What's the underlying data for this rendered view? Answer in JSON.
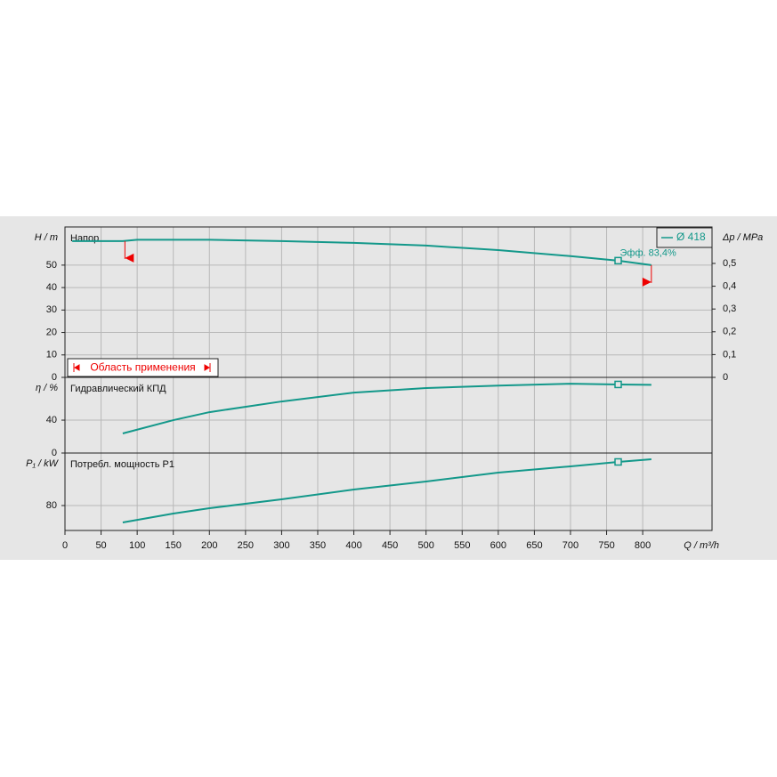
{
  "chart_data": [
    {
      "type": "line",
      "subtitle": "Напор",
      "ylabel": "H / m",
      "y2label": "Δp / MPa",
      "x": [
        10,
        80,
        100,
        200,
        300,
        400,
        500,
        600,
        700,
        766,
        812
      ],
      "series": [
        {
          "name": "Ø 418",
          "color": "#13988a",
          "values": [
            60.7,
            60.7,
            61.3,
            61.3,
            60.7,
            59.9,
            58.7,
            56.7,
            54,
            52,
            50
          ]
        }
      ],
      "ylim": [
        0,
        67
      ],
      "yticks": [
        0,
        10,
        20,
        30,
        40,
        50
      ],
      "y2lim": [
        0,
        0.66
      ],
      "y2ticks": [
        0,
        {
          "value": 0.1,
          "label": "0,1"
        },
        {
          "value": 0.2,
          "label": "0,2"
        },
        {
          "value": 0.3,
          "label": "0,3"
        },
        {
          "value": 0.4,
          "label": "0,4"
        },
        {
          "value": 0.5,
          "label": "0,5"
        }
      ],
      "operating_point": {
        "x": 766,
        "y": 52,
        "label": "Эфф.  83,4%"
      },
      "application_range": {
        "label": "Область применения",
        "x": [
          83,
          812
        ]
      },
      "grid": true
    },
    {
      "type": "line",
      "subtitle": "Гидравлический КПД",
      "ylabel": "η / %",
      "x": [
        80,
        150,
        200,
        300,
        400,
        500,
        600,
        700,
        766,
        812
      ],
      "series": [
        {
          "name": "Ø 418",
          "color": "#13988a",
          "values": [
            23.8,
            40,
            49.7,
            62.7,
            73.5,
            79,
            82,
            84.3,
            83.4,
            83
          ]
        }
      ],
      "ylim": [
        0,
        92
      ],
      "yticks": [
        0,
        40
      ],
      "operating_point": {
        "x": 766,
        "y": 83.4
      },
      "grid": true
    },
    {
      "type": "line",
      "subtitle": "Потребл. мощность P1",
      "ylabel": "P₁ / kW",
      "xlabel": "Q / m³/h",
      "x": [
        80,
        150,
        200,
        300,
        400,
        500,
        600,
        700,
        766,
        812
      ],
      "series": [
        {
          "name": "Ø 418",
          "color": "#13988a",
          "values": [
            61,
            71,
            77,
            87,
            98,
            107,
            117,
            124,
            129,
            132
          ]
        }
      ],
      "ylim": [
        52,
        139
      ],
      "yticks": [
        80
      ],
      "xlim": [
        0,
        896
      ],
      "xticks": [
        0,
        50,
        100,
        150,
        200,
        250,
        300,
        350,
        400,
        450,
        500,
        550,
        600,
        650,
        700,
        750,
        800
      ],
      "operating_point": {
        "x": 766,
        "y": 129
      },
      "grid": true
    }
  ]
}
